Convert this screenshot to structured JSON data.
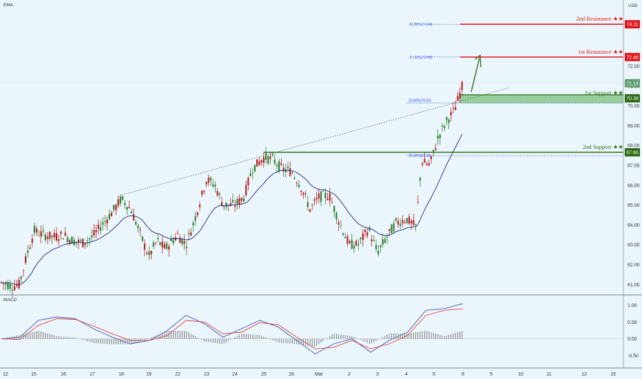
{
  "indicator_main": "EMA",
  "indicator_sub": "MACD",
  "currency": "USD",
  "colors": {
    "background": "#eaf6fb",
    "up": "#2e7d32",
    "down": "#b71c1c",
    "ema": "#1a237e",
    "resistance": "#e0161c",
    "support": "#2e6b15",
    "support_zone": "#4caf50",
    "fib": "#1e3ddf",
    "macd_line": "#3f51b5",
    "signal_line": "#e53935",
    "histogram": "#7a7a7a",
    "last_price": "#5e9e73"
  },
  "last_price": "71.14",
  "levels": [
    {
      "title": "2nd Resistance ★★",
      "value": 74.11,
      "tag": "74.11",
      "kind": "resistance",
      "fib": "-61.80%(74.14)"
    },
    {
      "title": "1st Resistance ★★",
      "value": 72.46,
      "tag": "72.46",
      "kind": "resistance",
      "fib": "-27.20%(72.47)"
    },
    {
      "title": "1st Support ★★",
      "value": 70.38,
      "tag": "70.38",
      "kind": "support",
      "fib": "23.60%(70.02)"
    },
    {
      "title": "2nd Support ★★",
      "value": 67.66,
      "tag": "67.66",
      "kind": "support",
      "fib": "76.40%(67.48)"
    }
  ],
  "chart_data": [
    {
      "type": "candlestick",
      "title": "",
      "series_name": "",
      "y_ticks": [
        "72.00",
        "71.00",
        "70.00",
        "69.00",
        "68.00",
        "67.00",
        "66.00",
        "65.00",
        "64.00",
        "63.00",
        "62.00",
        "61.00"
      ],
      "y_tick_values": [
        72,
        71,
        70,
        69,
        68,
        67,
        66,
        65,
        64,
        63,
        62,
        61
      ],
      "ylim": [
        60.5,
        75.0
      ],
      "x_ticks": [
        "12",
        "15",
        "16",
        "17",
        "18",
        "19",
        "22",
        "23",
        "24",
        "25",
        "26",
        "Mar",
        "2",
        "3",
        "4",
        "5",
        "8",
        "9",
        "10",
        "11",
        "12",
        "15"
      ],
      "approx_close_path": [
        {
          "x": "12",
          "y": 61.1
        },
        {
          "x": "15",
          "y": 63.6
        },
        {
          "x": "16",
          "y": 63.3
        },
        {
          "x": "17",
          "y": 63.9
        },
        {
          "x": "18",
          "y": 65.3
        },
        {
          "x": "19",
          "y": 62.7
        },
        {
          "x": "22",
          "y": 63.2
        },
        {
          "x": "23",
          "y": 66.3
        },
        {
          "x": "24",
          "y": 65.0
        },
        {
          "x": "25",
          "y": 67.4
        },
        {
          "x": "26",
          "y": 66.6
        },
        {
          "x": "Mar",
          "y": 65.4
        },
        {
          "x": "2",
          "y": 63.0
        },
        {
          "x": "3",
          "y": 63.5
        },
        {
          "x": "4",
          "y": 64.2
        },
        {
          "x": "5",
          "y": 69.0
        },
        {
          "x": "8",
          "y": 71.14
        }
      ],
      "grid": false
    },
    {
      "type": "line",
      "title": "MACD",
      "y_ticks": [
        "1.00",
        "0.50",
        "0.00",
        "-0.50"
      ],
      "y_tick_values": [
        1.0,
        0.5,
        0.0,
        -0.5
      ],
      "ylim": [
        -0.75,
        1.15
      ],
      "x_ticks": [
        "12",
        "15",
        "16",
        "17",
        "18",
        "19",
        "22",
        "23",
        "24",
        "25",
        "26",
        "Mar",
        "2",
        "3",
        "4",
        "5",
        "8",
        "9",
        "10",
        "11",
        "12",
        "15"
      ],
      "series": [
        {
          "name": "",
          "values": [
            0.0,
            0.05,
            0.55,
            0.65,
            0.6,
            0.3,
            0.05,
            -0.15,
            -0.05,
            0.25,
            0.7,
            0.45,
            0.05,
            0.3,
            0.55,
            0.35,
            -0.05,
            -0.45,
            -0.15,
            0.0,
            -0.4,
            -0.05,
            0.2,
            0.85,
            0.9,
            1.05
          ]
        },
        {
          "name": "",
          "values": [
            0.0,
            -0.02,
            0.4,
            0.6,
            0.58,
            0.38,
            0.15,
            -0.05,
            -0.05,
            0.1,
            0.55,
            0.5,
            0.15,
            0.2,
            0.48,
            0.42,
            0.05,
            -0.3,
            -0.25,
            -0.05,
            -0.3,
            -0.15,
            0.1,
            0.7,
            0.85,
            0.9
          ]
        }
      ],
      "grid": false
    }
  ]
}
